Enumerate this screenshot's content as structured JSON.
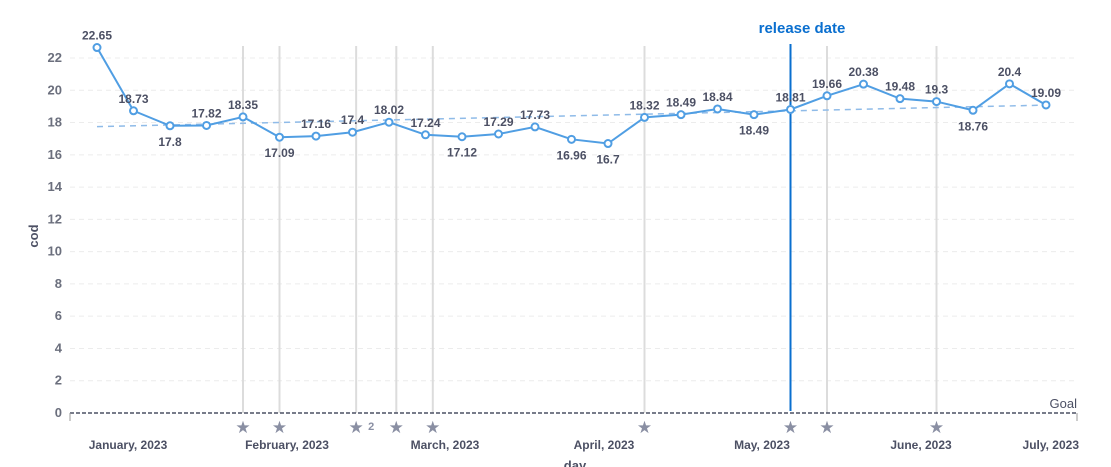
{
  "chart_data": {
    "type": "line",
    "title": "",
    "xlabel": "day",
    "ylabel": "cod",
    "ylim": [
      0,
      22
    ],
    "yticks": [
      "0",
      "2",
      "4",
      "6",
      "8",
      "10",
      "12",
      "14",
      "16",
      "18",
      "20",
      "22"
    ],
    "xticks": [
      "January, 2023",
      "February, 2023",
      "March, 2023",
      "April, 2023",
      "May, 2023",
      "June, 2023",
      "July, 2023"
    ],
    "grid": true,
    "series": [
      {
        "name": "cod",
        "color": "#509ee3",
        "values": [
          22.65,
          18.73,
          17.8,
          17.82,
          18.35,
          17.09,
          17.16,
          17.4,
          18.02,
          17.24,
          17.12,
          17.29,
          17.73,
          16.96,
          16.7,
          18.32,
          18.49,
          18.84,
          18.49,
          18.81,
          19.66,
          20.38,
          19.48,
          19.3,
          18.76,
          20.4,
          19.09
        ],
        "labels": [
          "22.65",
          "18.73",
          "17.8",
          "17.82",
          "18.35",
          "17.09",
          "17.16",
          "17.4",
          "18.02",
          "17.24",
          "17.12",
          "17.29",
          "17.73",
          "16.96",
          "16.7",
          "18.32",
          "18.49",
          "18.84",
          "18.49",
          "18.81",
          "19.66",
          "20.38",
          "19.48",
          "19.3",
          "18.76",
          "20.4",
          "19.09"
        ]
      }
    ],
    "trendline": {
      "start": 17.75,
      "end": 19.08,
      "color": "#8fbbe8"
    },
    "goal": {
      "value": 0,
      "label": "Goal",
      "color": "#4c5064"
    },
    "events": [
      {
        "index": 4,
        "count": ""
      },
      {
        "index": 5,
        "count": ""
      },
      {
        "index": 7.1,
        "count": "2"
      },
      {
        "index": 8.2,
        "count": ""
      },
      {
        "index": 9.2,
        "count": ""
      },
      {
        "index": 15,
        "count": ""
      },
      {
        "index": 20,
        "count": ""
      },
      {
        "index": 23,
        "count": ""
      }
    ],
    "release": {
      "index": 19,
      "label": "release date",
      "color": "#0a6fcf"
    }
  }
}
